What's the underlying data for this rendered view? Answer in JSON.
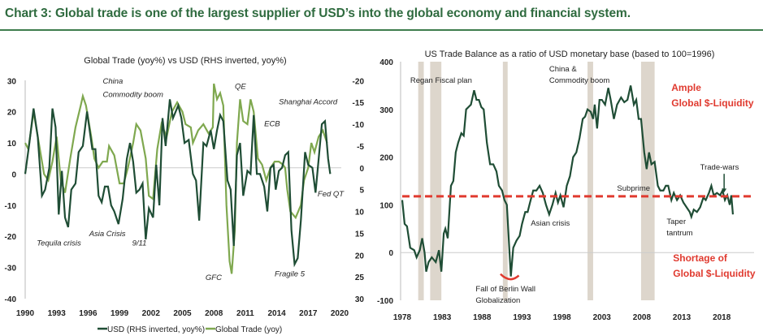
{
  "title": "Chart 3: Global trade is one of the largest supplier of USD’s into the global economy and financial system.",
  "colors": {
    "title": "#2f6b3f",
    "usd": "#1f4d35",
    "trade": "#7fa84f",
    "ratio": "#1f4d35",
    "threshold": "#e03a2f",
    "shade": "#ddd6cc"
  },
  "chart_data": [
    {
      "type": "line",
      "title": "Global Trade (yoy%) vs USD (RHS inverted, yoy%)",
      "xlim": [
        1990,
        2020
      ],
      "x_ticks": [
        "1990",
        "1993",
        "1996",
        "1999",
        "2002",
        "2005",
        "2008",
        "2011",
        "2014",
        "2017",
        "2020"
      ],
      "ylim_left": [
        -40,
        30
      ],
      "y_ticks_left": [
        "30",
        "20",
        "10",
        "0",
        "-10",
        "-20",
        "-30",
        "-40"
      ],
      "ylim_right_inverted": [
        -20,
        30
      ],
      "y_ticks_right": [
        "-20",
        "-15",
        "-10",
        "-5",
        "0",
        "5",
        "10",
        "15",
        "20",
        "25",
        "30"
      ],
      "legend": [
        "USD (RHS inverted, yoy%)",
        "Global Trade (yoy)"
      ],
      "legend_position": "bottom",
      "series": [
        {
          "name": "USD (RHS inverted, yoy%)",
          "axis": "right",
          "x": [
            1990,
            1990.4,
            1990.8,
            1991.2,
            1991.6,
            1991.9,
            1992.3,
            1992.6,
            1992.9,
            1993.2,
            1993.5,
            1993.8,
            1994.1,
            1994.4,
            1994.8,
            1995.1,
            1995.5,
            1995.9,
            1996.4,
            1996.7,
            1997,
            1997.3,
            1997.6,
            1997.9,
            1998.2,
            1998.5,
            1998.9,
            1999.3,
            1999.7,
            2000,
            2000.3,
            2000.6,
            2000.9,
            2001.2,
            2001.5,
            2001.8,
            2002.2,
            2002.5,
            2002.8,
            2003.1,
            2003.4,
            2003.8,
            2004.1,
            2004.6,
            2004.9,
            2005.2,
            2005.6,
            2006,
            2006.3,
            2006.6,
            2007,
            2007.3,
            2007.7,
            2008,
            2008.3,
            2008.6,
            2008.9,
            2009.3,
            2009.6,
            2009.9,
            2010.2,
            2010.5,
            2010.8,
            2011.2,
            2011.5,
            2011.8,
            2012.1,
            2012.4,
            2012.8,
            2013.1,
            2013.4,
            2013.7,
            2013.9,
            2014.2,
            2014.5,
            2014.8,
            2015.1,
            2015.4,
            2015.7,
            2016,
            2016.3,
            2016.7,
            2017,
            2017.4,
            2017.7,
            2018,
            2018.3,
            2018.6,
            2018.9,
            2019.1
          ],
          "y": [
            1.4,
            -5.7,
            -13.6,
            -7.1,
            6.4,
            5,
            0,
            -13.6,
            -9.3,
            10.7,
            0.7,
            11.4,
            13.6,
            5,
            3.6,
            -3.6,
            -5,
            -12.9,
            -4.3,
            -4.3,
            6.4,
            7.9,
            4.3,
            4.3,
            8.6,
            10,
            12.9,
            7.1,
            -2.1,
            -5.7,
            -1.4,
            5.7,
            5,
            3.6,
            16.4,
            9.3,
            11.4,
            -0.7,
            8.6,
            -11.4,
            -5,
            -15.7,
            -11.4,
            -14.3,
            -11.4,
            -5.7,
            -6.4,
            1.4,
            2.9,
            12.1,
            -5.7,
            -5,
            -8.6,
            -4.3,
            -8.6,
            -12.1,
            -10.7,
            2.9,
            5,
            17.9,
            -2.9,
            -5.7,
            6.4,
            0.7,
            1.4,
            -12.1,
            1.4,
            1.4,
            4.3,
            10,
            0,
            -0.7,
            5,
            0.7,
            0,
            -2.9,
            -3.6,
            14.3,
            22.1,
            20.7,
            12.1,
            -3.6,
            -0.7,
            0,
            5.7,
            -2.1,
            -10,
            -10.7,
            -2.1,
            1.4
          ]
        },
        {
          "name": "Global Trade (yoy)",
          "axis": "left",
          "x": [
            1990,
            1990.3,
            1990.8,
            1991.3,
            1991.8,
            1992.2,
            1992.6,
            1993,
            1993.4,
            1993.8,
            1994.3,
            1994.8,
            1995.3,
            1995.5,
            1995.8,
            1996.3,
            1996.6,
            1997,
            1997.4,
            1997.8,
            1998,
            1998.5,
            1999,
            1999.4,
            1999.8,
            2000.3,
            2000.6,
            2001,
            2001.5,
            2001.8,
            2002.2,
            2002.6,
            2003,
            2003.5,
            2004,
            2004.5,
            2005,
            2005.3,
            2005.8,
            2006,
            2006.5,
            2007,
            2007.5,
            2007.9,
            2008,
            2008.3,
            2008.6,
            2008.9,
            2009.2,
            2009.5,
            2009.7,
            2010,
            2010.2,
            2010.5,
            2010.8,
            2011.2,
            2011.5,
            2011.8,
            2012.2,
            2012.6,
            2013,
            2013.4,
            2013.8,
            2014.2,
            2014.6,
            2014.8,
            2015,
            2015.3,
            2015.8,
            2016.3,
            2016.6,
            2017,
            2017.3,
            2017.6,
            2018,
            2018.4,
            2018.8
          ],
          "y": [
            10,
            8,
            20,
            10,
            0,
            -2,
            4,
            12,
            -2,
            -6,
            5,
            15,
            22,
            25,
            22,
            12,
            5,
            2,
            4,
            4,
            9,
            6,
            -3,
            -3,
            2,
            10,
            16,
            14,
            5,
            -7,
            -8,
            8,
            16,
            12,
            20,
            23,
            20,
            16,
            15,
            10,
            14,
            16,
            13,
            15,
            29,
            24,
            26,
            22,
            -10,
            -28,
            -32,
            -18,
            10,
            24,
            17,
            16,
            24,
            20,
            5,
            3,
            -2,
            2,
            4,
            4,
            3,
            2,
            -5,
            -12,
            -14,
            -10,
            -2,
            2,
            10,
            7,
            12,
            14,
            10
          ]
        }
      ],
      "annotations": [
        {
          "text": "China",
          "x": 1997.4,
          "y": 29
        },
        {
          "text": "Commodity boom",
          "x": 1997.4,
          "y": 24.8
        },
        {
          "text": "QE",
          "x": 2010.0,
          "y": 27.4
        },
        {
          "text": "Shanghai Accord",
          "x": 2014.2,
          "y": 22.4
        },
        {
          "text": "ECB",
          "x": 2012.8,
          "y": 15.4
        },
        {
          "text": "Fed QT",
          "x": 2017.9,
          "y": -7.2
        },
        {
          "text": "Tequila crisis",
          "x": 1991.1,
          "y": -22.9
        },
        {
          "text": "Asia Crisis",
          "x": 1996.1,
          "y": -20
        },
        {
          "text": "9/11",
          "x": 2000.2,
          "y": -22.9
        },
        {
          "text": "GFC",
          "x": 2007.2,
          "y": -34
        },
        {
          "text": "Fragile 5",
          "x": 2013.8,
          "y": -32.8
        }
      ]
    },
    {
      "type": "line",
      "title": "US Trade Balance as a ratio of  USD monetary base (based to 100=1996)",
      "xlim": [
        1978,
        2022
      ],
      "x_ticks": [
        "1978",
        "1983",
        "1988",
        "1993",
        "1998",
        "2003",
        "2008",
        "2013",
        "2018"
      ],
      "ylim": [
        -100,
        400
      ],
      "y_ticks": [
        "400",
        "300",
        "200",
        "100",
        "0",
        "-100"
      ],
      "threshold": 118,
      "shaded_periods": [
        [
          1980.0,
          1980.7
        ],
        [
          1981.5,
          1982.9
        ],
        [
          1990.6,
          1991.2
        ],
        [
          2001.2,
          2001.9
        ],
        [
          2007.9,
          2009.6
        ]
      ],
      "series": [
        {
          "name": "US Trade Balance / USD monetary base",
          "x": [
            1978,
            1978.3,
            1978.6,
            1979,
            1979.5,
            1979.8,
            1980.2,
            1980.5,
            1980.8,
            1981,
            1981.3,
            1981.7,
            1982.2,
            1982.6,
            1982.9,
            1983.2,
            1983.4,
            1983.7,
            1984.1,
            1984.4,
            1984.7,
            1985,
            1985.4,
            1985.7,
            1986,
            1986.3,
            1986.6,
            1987,
            1987.3,
            1987.6,
            1987.9,
            1988.2,
            1988.6,
            1989,
            1989.4,
            1989.8,
            1990.1,
            1990.5,
            1990.8,
            1991.1,
            1991.3,
            1991.6,
            1991.9,
            1992.3,
            1992.7,
            1993,
            1993.4,
            1993.7,
            1994,
            1994.4,
            1994.8,
            1995.2,
            1995.6,
            1996,
            1996.4,
            1996.8,
            1997.2,
            1997.5,
            1997.8,
            1998.2,
            1998.6,
            1999,
            1999.4,
            1999.8,
            2000.2,
            2000.6,
            2000.9,
            2001.2,
            2001.6,
            2001.9,
            2002.1,
            2002.4,
            2002.7,
            2003,
            2003.4,
            2003.8,
            2004.1,
            2004.5,
            2004.9,
            2005.4,
            2005.8,
            2006.2,
            2006.6,
            2007,
            2007.3,
            2007.6,
            2007.9,
            2008.3,
            2008.6,
            2008.9,
            2009.2,
            2009.6,
            2010,
            2010.3,
            2010.7,
            2011,
            2011.3,
            2011.7,
            2012,
            2012.4,
            2012.8,
            2013.2,
            2013.6,
            2014,
            2014.2,
            2014.5,
            2014.9,
            2015.3,
            2015.7,
            2016,
            2016.4,
            2016.7,
            2017,
            2017.4,
            2017.8,
            2018.1,
            2018.4,
            2018.7,
            2019,
            2019.2,
            2019.4
          ],
          "y": [
            110,
            60,
            55,
            10,
            5,
            -10,
            5,
            30,
            0,
            -40,
            -20,
            -10,
            -20,
            5,
            -40,
            40,
            50,
            30,
            140,
            150,
            210,
            230,
            250,
            245,
            300,
            305,
            310,
            340,
            320,
            320,
            305,
            300,
            230,
            185,
            185,
            170,
            140,
            130,
            110,
            100,
            40,
            -50,
            10,
            25,
            35,
            60,
            85,
            85,
            105,
            130,
            130,
            140,
            125,
            100,
            80,
            100,
            125,
            105,
            120,
            95,
            140,
            160,
            200,
            210,
            240,
            280,
            285,
            300,
            295,
            280,
            310,
            260,
            320,
            320,
            310,
            345,
            320,
            280,
            310,
            325,
            315,
            320,
            350,
            310,
            320,
            280,
            280,
            210,
            175,
            210,
            185,
            190,
            140,
            130,
            130,
            140,
            140,
            110,
            125,
            110,
            120,
            105,
            95,
            85,
            75,
            90,
            85,
            95,
            115,
            110,
            125,
            140,
            120,
            125,
            120,
            130,
            110,
            120,
            100,
            120,
            80
          ]
        }
      ],
      "annotations": [
        {
          "text": "Regan Fiscal plan",
          "x": 1979.0,
          "y": 355.8,
          "style": "plain"
        },
        {
          "text": "China &",
          "x": 1996.4,
          "y": 379.6,
          "style": "plain"
        },
        {
          "text": "Commodity boom",
          "x": 1996.4,
          "y": 355.8,
          "style": "plain"
        },
        {
          "text": "Ample",
          "x": 2011.7,
          "y": 338.8,
          "style": "red"
        },
        {
          "text": "Global $-Liquidity",
          "x": 2011.7,
          "y": 306.5,
          "style": "red"
        },
        {
          "text": "Trade-wars",
          "x": 2015.3,
          "y": 173.8,
          "style": "plain"
        },
        {
          "text": "Subprime",
          "x": 2004.9,
          "y": 129.6,
          "style": "plain"
        },
        {
          "text": "Asian crisis",
          "x": 1994.1,
          "y": 56.5,
          "style": "plain"
        },
        {
          "text": "Taper",
          "x": 2011.1,
          "y": 59.9,
          "style": "plain"
        },
        {
          "text": "tantrum",
          "x": 2011.1,
          "y": 36.1,
          "style": "plain"
        },
        {
          "text": "Shortage of",
          "x": 2011.9,
          "y": -18.4,
          "style": "red"
        },
        {
          "text": "Global $-Liquidity",
          "x": 2011.9,
          "y": -50.7,
          "style": "red"
        },
        {
          "text": "Fall of Berlin Wall",
          "x": 1987.2,
          "y": -81.3,
          "style": "plain"
        },
        {
          "text": "Globalization",
          "x": 1987.2,
          "y": -105.1,
          "style": "plain"
        }
      ]
    }
  ]
}
